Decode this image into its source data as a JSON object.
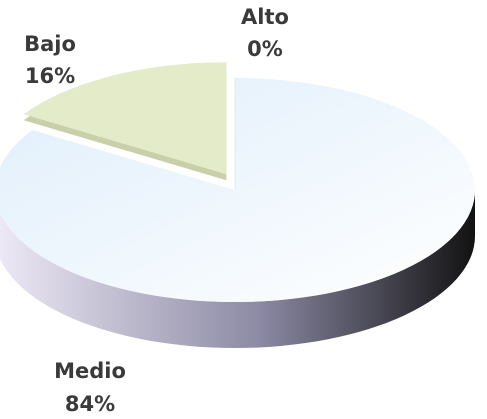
{
  "chart_data": {
    "type": "pie",
    "title": "",
    "categories": [
      "Alto",
      "Medio",
      "Bajo"
    ],
    "values": [
      0,
      84,
      16
    ],
    "percent_labels": [
      "0%",
      "84%",
      "16%"
    ],
    "colors": {
      "Alto": "#cfe3f3",
      "Medio": "#dfeefb",
      "Bajo": "#e3ebc8",
      "side_light": "#eeeaf7",
      "side_mid": "#8c8aa4",
      "side_dark": "#121212"
    },
    "style": "3d-exploded",
    "legend": "none"
  }
}
